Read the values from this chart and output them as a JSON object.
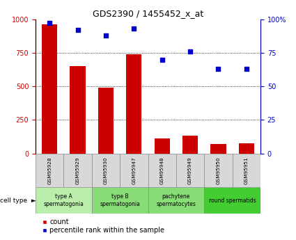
{
  "title": "GDS2390 / 1455452_x_at",
  "samples": [
    "GSM95928",
    "GSM95929",
    "GSM95930",
    "GSM95947",
    "GSM95948",
    "GSM95949",
    "GSM95950",
    "GSM95951"
  ],
  "counts": [
    960,
    650,
    490,
    740,
    115,
    135,
    70,
    75
  ],
  "percentile_ranks": [
    97,
    92,
    88,
    93,
    70,
    76,
    63,
    63
  ],
  "bar_color": "#cc0000",
  "dot_color": "#0000cc",
  "ylim_left": [
    0,
    1000
  ],
  "ylim_right": [
    0,
    100
  ],
  "yticks_left": [
    0,
    250,
    500,
    750,
    1000
  ],
  "yticks_right": [
    0,
    25,
    50,
    75,
    100
  ],
  "ytick_labels_right": [
    "0",
    "25",
    "50",
    "75",
    "100%"
  ],
  "gridlines": [
    250,
    500,
    750
  ],
  "cell_groups": [
    {
      "label": "type A\nspermatogonia",
      "indices": [
        0,
        1
      ],
      "color": "#bbeeaa"
    },
    {
      "label": "type B\nspermatogonia",
      "indices": [
        2,
        3
      ],
      "color": "#88dd77"
    },
    {
      "label": "pachytene\nspermatocytes",
      "indices": [
        4,
        5
      ],
      "color": "#88dd77"
    },
    {
      "label": "round spermatids",
      "indices": [
        6,
        7
      ],
      "color": "#44cc33"
    }
  ],
  "sample_box_color": "#d8d8d8",
  "legend_count_label": "count",
  "legend_pct_label": "percentile rank within the sample",
  "cell_type_label": "cell type",
  "title_fontsize": 9,
  "tick_fontsize": 7,
  "label_fontsize": 6.5,
  "legend_fontsize": 7
}
